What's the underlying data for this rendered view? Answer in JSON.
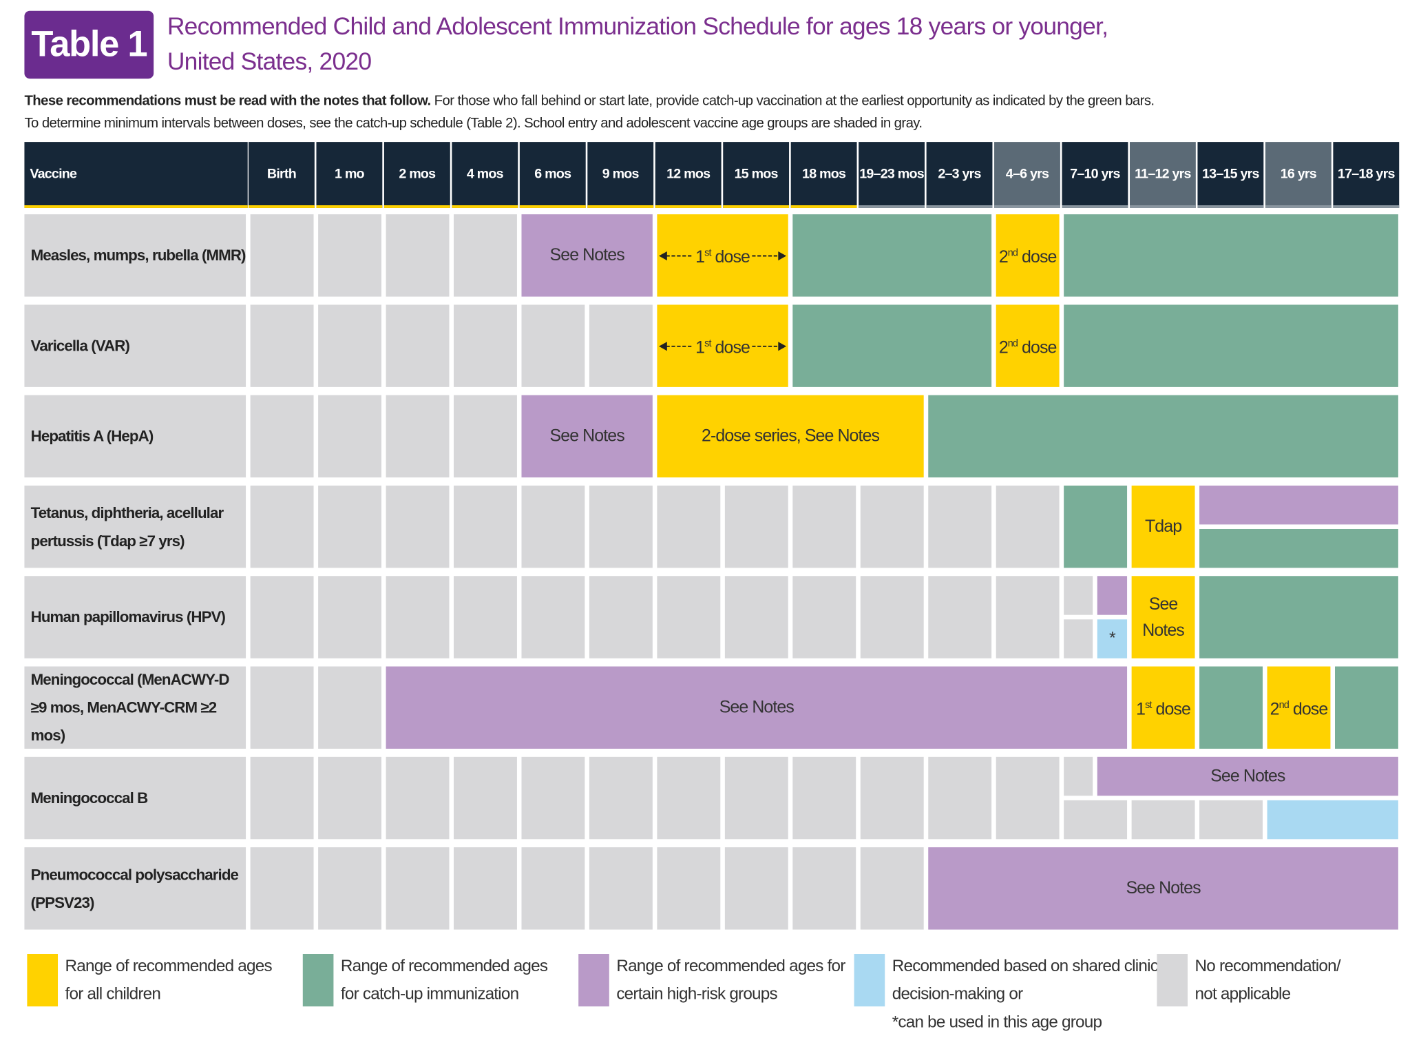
{
  "header": {
    "badge": "Table 1",
    "title": [
      "Recommended Child and Adolescent Immunization Schedule for ages 18 years or younger,",
      "United States, 2020"
    ]
  },
  "intro": {
    "bold": "These recommendations must be read with the notes that follow.",
    "text": "For those who fall behind or start late, provide catch-up vaccination at the earliest opportunity as indicated by the green bars.",
    "text2": "To determine minimum intervals between doses, see the catch-up schedule (Table 2). School entry and adolescent vaccine age groups are shaded in gray."
  },
  "table": {
    "vaccine_header": "Vaccine",
    "columns": [
      "Birth",
      "1 mo",
      "2 mos",
      "4 mos",
      "6 mos",
      "9 mos",
      "12 mos",
      "15 mos",
      "18 mos",
      "19–23 mos",
      "2–3 yrs",
      "4–6 yrs",
      "7–10 yrs",
      "11–12 yrs",
      "13–15 yrs",
      "16 yrs",
      "17–18 yrs"
    ],
    "shaded_columns": [
      11,
      13,
      15
    ],
    "rows": [
      {
        "vaccine": [
          "Measles, mumps, rubella (MMR)"
        ],
        "segments": [
          {
            "start": 4,
            "end": 5,
            "kind": 2,
            "label": "See Notes"
          },
          {
            "start": 6,
            "end": 7,
            "kind": 0,
            "label": [
              "1",
              "st",
              " dose"
            ],
            "arrows": true
          },
          {
            "start": 8,
            "end": 10,
            "kind": 1
          },
          {
            "start": 11,
            "end": 11,
            "kind": 0,
            "label": [
              "2",
              "nd",
              " dose"
            ]
          },
          {
            "start": 12,
            "end": 16,
            "kind": 1
          }
        ]
      },
      {
        "vaccine": [
          "Varicella (VAR)"
        ],
        "segments": [
          {
            "start": 6,
            "end": 7,
            "kind": 0,
            "label": [
              "1",
              "st",
              " dose"
            ],
            "arrows": true
          },
          {
            "start": 8,
            "end": 10,
            "kind": 1
          },
          {
            "start": 11,
            "end": 11,
            "kind": 0,
            "label": [
              "2",
              "nd",
              " dose"
            ]
          },
          {
            "start": 12,
            "end": 16,
            "kind": 1
          }
        ]
      },
      {
        "vaccine": [
          "Hepatitis A (HepA)"
        ],
        "segments": [
          {
            "start": 4,
            "end": 5,
            "kind": 2,
            "label": "See Notes"
          },
          {
            "start": 6,
            "end": 9,
            "kind": 0,
            "label": "2-dose series, See Notes"
          },
          {
            "start": 10,
            "end": 16,
            "kind": 1
          }
        ]
      },
      {
        "vaccine": [
          "Tetanus, diphtheria, acellular",
          "pertussis (Tdap ≥7 yrs)"
        ],
        "segments": [
          {
            "start": 12,
            "end": 12,
            "kind": 1
          },
          {
            "start": 13,
            "end": 13,
            "kind": 0,
            "label": "Tdap"
          },
          {
            "start": 14,
            "end": 16,
            "kind": 2,
            "half": "top"
          },
          {
            "start": 14,
            "end": 16,
            "kind": 1,
            "half": "bottom"
          }
        ]
      },
      {
        "vaccine": [
          "Human papillomavirus (HPV)"
        ],
        "segments": [
          {
            "start": 12,
            "end": 12,
            "kind": 4,
            "half": "top",
            "part": "left"
          },
          {
            "start": 12,
            "end": 12,
            "kind": 2,
            "half": "top",
            "part": "right"
          },
          {
            "start": 12,
            "end": 12,
            "kind": 4,
            "half": "bottom",
            "part": "left"
          },
          {
            "start": 12,
            "end": 12,
            "kind": 3,
            "half": "bottom",
            "part": "right",
            "label": "*"
          },
          {
            "start": 13,
            "end": 13,
            "kind": 0,
            "label": "See Notes"
          },
          {
            "start": 14,
            "end": 16,
            "kind": 1
          }
        ]
      },
      {
        "vaccine": [
          "Meningococcal (MenACWY-D",
          "≥9 mos, MenACWY-CRM ≥2 mos)"
        ],
        "segments": [
          {
            "start": 2,
            "end": 12,
            "kind": 2,
            "label": "See Notes"
          },
          {
            "start": 13,
            "end": 13,
            "kind": 0,
            "label": [
              "1",
              "st",
              " dose"
            ]
          },
          {
            "start": 14,
            "end": 14,
            "kind": 1
          },
          {
            "start": 15,
            "end": 15,
            "kind": 0,
            "label": [
              "2",
              "nd",
              " dose"
            ]
          },
          {
            "start": 16,
            "end": 16,
            "kind": 1
          }
        ]
      },
      {
        "vaccine": [
          "Meningococcal B"
        ],
        "segments": [
          {
            "start": 12,
            "end": 12,
            "kind": 4,
            "half": "top",
            "part": "left"
          },
          {
            "start": 12,
            "end": 16,
            "kind": 2,
            "half": "top",
            "part": "right",
            "label": "See Notes"
          },
          {
            "start": 12,
            "end": 12,
            "kind": 4,
            "half": "bottom"
          },
          {
            "start": 13,
            "end": 13,
            "kind": 4,
            "half": "bottom"
          },
          {
            "start": 14,
            "end": 14,
            "kind": 4,
            "half": "bottom"
          },
          {
            "start": 15,
            "end": 16,
            "kind": 3,
            "half": "bottom"
          }
        ]
      },
      {
        "vaccine": [
          "Pneumococcal polysaccharide",
          "(PPSV23)"
        ],
        "segments": [
          {
            "start": 10,
            "end": 16,
            "kind": 2,
            "label": "See Notes"
          }
        ]
      }
    ]
  },
  "legend": [
    {
      "color": "#ffd200",
      "lines": [
        "Range of recommended ages",
        "for all children"
      ]
    },
    {
      "color": "#79ae98",
      "lines": [
        "Range of recommended ages",
        "for catch-up immunization"
      ]
    },
    {
      "color": "#b99ac8",
      "lines": [
        "Range of recommended ages for",
        "certain high-risk groups"
      ]
    },
    {
      "color": "#a9d9f2",
      "lines": [
        "Recommended based on shared clinical",
        "decision-making or",
        "*can be used in this age group"
      ]
    },
    {
      "color": "#d7d7d9",
      "lines": [
        "No recommendation/",
        "not applicable"
      ]
    }
  ]
}
